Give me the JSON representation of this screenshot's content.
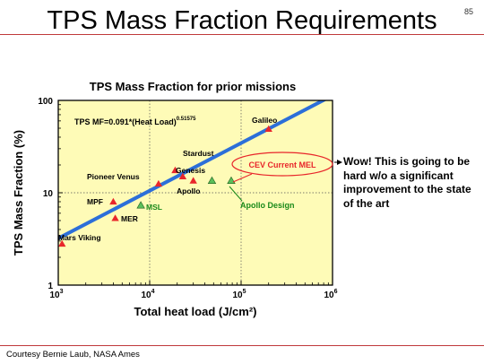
{
  "slide": {
    "title": "TPS Mass Fraction Requirements",
    "number": "85",
    "credit": "Courtesy Bernie Laub, NASA Ames",
    "comment": "Wow! This is going to be hard w/o a significant improvement to the state of the art"
  },
  "colors": {
    "plot_bg": "#fefbb7",
    "fit_line": "#2c6fd9",
    "prior_marker": "#e8262b",
    "cev_marker": "#5bbf5a",
    "cev_label": "#e8262b",
    "design_label": "#1a8a1a",
    "accent_rule": "#c0393b"
  },
  "chart_data": {
    "type": "scatter",
    "title": "TPS Mass Fraction for prior missions",
    "xlabel": "Total heat load (J/cm²)",
    "ylabel": "TPS Mass Fraction (%)",
    "x_scale": "log",
    "y_scale": "log",
    "xlim": [
      1000,
      1000000
    ],
    "ylim": [
      1,
      100
    ],
    "x_ticks": [
      {
        "value": 1000,
        "base": "10",
        "exp": "3"
      },
      {
        "value": 10000,
        "base": "10",
        "exp": "4"
      },
      {
        "value": 100000,
        "base": "10",
        "exp": "5"
      },
      {
        "value": 1000000,
        "base": "10",
        "exp": "6"
      }
    ],
    "y_ticks": [
      {
        "value": 1,
        "label": "1"
      },
      {
        "value": 10,
        "label": "10"
      },
      {
        "value": 100,
        "label": "100"
      }
    ],
    "grid": true,
    "fit": {
      "equation_prefix": "TPS  MF=0.091*(Heat Load)",
      "equation_exponent": "0.51575",
      "coefficient": 0.091,
      "exponent": 0.51575
    },
    "series": [
      {
        "name": "prior missions",
        "marker": "triangle",
        "points": [
          {
            "label": "Mars Viking",
            "x": 1100,
            "y": 2.8
          },
          {
            "label": "MPF",
            "x": 4000,
            "y": 8.0
          },
          {
            "label": "MER",
            "x": 4200,
            "y": 5.3
          },
          {
            "label": "Pioneer Venus",
            "x": 12500,
            "y": 12.5
          },
          {
            "label": "Stardust",
            "x": 19000,
            "y": 17.5
          },
          {
            "label": "Genesis",
            "x": 23000,
            "y": 15.0
          },
          {
            "label": "Apollo",
            "x": 30000,
            "y": 13.5
          },
          {
            "label": "Galileo",
            "x": 200000,
            "y": 49
          }
        ]
      },
      {
        "name": "CEV",
        "marker": "triangle",
        "points": [
          {
            "label": "MSL",
            "x": 8000,
            "y": 7.3
          },
          {
            "label": "",
            "x": 48000,
            "y": 13.5
          },
          {
            "label": "",
            "x": 78000,
            "y": 13.5
          }
        ],
        "annotations": [
          "CEV Current MEL",
          "Apollo Design"
        ]
      }
    ]
  }
}
